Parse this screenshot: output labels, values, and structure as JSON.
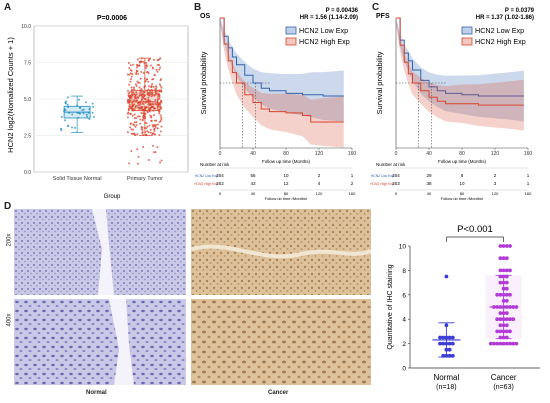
{
  "panel_labels": {
    "a": "A",
    "b": "B",
    "c": "C",
    "d": "D"
  },
  "chart_data": [
    {
      "id": "A",
      "type": "box",
      "title": "P=0.0006",
      "ylabel": "HCN2 log2(Nomalized Counts + 1)",
      "xlabel": "Group",
      "categories": [
        "Solid Tissue Normal",
        "Primary Tumor"
      ],
      "yticks": [
        "0.0",
        "2.5",
        "5.0",
        "7.5",
        "10.0"
      ],
      "ylim": [
        0,
        10
      ],
      "boxes": [
        {
          "name": "Solid Tissue Normal",
          "q1": 3.7,
          "median": 4.1,
          "q3": 4.5,
          "low": 2.7,
          "high": 5.2,
          "n_points": 40,
          "color": "#1f8fc4"
        },
        {
          "name": "Primary Tumor",
          "q1": 4.2,
          "median": 4.8,
          "q3": 5.6,
          "low": 2.5,
          "high": 7.8,
          "n_points": 450,
          "color": "#d9462f"
        }
      ]
    },
    {
      "id": "B",
      "type": "line",
      "title": "OS",
      "stats": [
        "P = 0.00436",
        "HR = 1.56 (1.14-2.09)"
      ],
      "ylabel": "Survival probability",
      "xlabel": "Follow up time (Months)",
      "xticks": [
        "0",
        "40",
        "80",
        "120",
        "160"
      ],
      "xlim": [
        0,
        160
      ],
      "ylim": [
        0,
        1
      ],
      "series": [
        {
          "name": "HCN2 Low Exp",
          "color": "#3562b0",
          "x": [
            0,
            5,
            10,
            15,
            20,
            30,
            40,
            50,
            60,
            80,
            100,
            110,
            125,
            150
          ],
          "y": [
            1,
            0.86,
            0.77,
            0.7,
            0.64,
            0.56,
            0.5,
            0.46,
            0.44,
            0.42,
            0.41,
            0.41,
            0.4,
            0.4
          ]
        },
        {
          "name": "HCN2 High Exp",
          "color": "#d9462f",
          "x": [
            0,
            5,
            10,
            15,
            20,
            30,
            40,
            50,
            60,
            80,
            100,
            110,
            125,
            150
          ],
          "y": [
            1,
            0.8,
            0.67,
            0.58,
            0.5,
            0.41,
            0.35,
            0.3,
            0.28,
            0.27,
            0.25,
            0.2,
            0.2,
            0.2
          ]
        }
      ],
      "risk_table": {
        "title": "Number at risk",
        "rows": [
          {
            "label": "HCN2 Low Exp",
            "values": [
              "204",
              "56",
              "10",
              "2",
              "1"
            ]
          },
          {
            "label": "HCN2 High Exp",
            "values": [
              "202",
              "43",
              "12",
              "4",
              "2"
            ]
          }
        ],
        "xticks": [
          "0",
          "40",
          "80",
          "120",
          "160"
        ],
        "xlabel": "Follow up time (Months)"
      }
    },
    {
      "id": "C",
      "type": "line",
      "title": "PFS",
      "stats": [
        "P = 0.0379",
        "HR = 1.37 (1.02-1.86)"
      ],
      "ylabel": "Survival probability",
      "xlabel": "Follow up time (Months)",
      "xticks": [
        "0",
        "40",
        "80",
        "120",
        "160"
      ],
      "xlim": [
        0,
        160
      ],
      "ylim": [
        0,
        1
      ],
      "series": [
        {
          "name": "HCN2 Low Exp",
          "color": "#3562b0",
          "x": [
            0,
            5,
            10,
            15,
            20,
            30,
            40,
            50,
            60,
            80,
            100,
            120,
            140,
            155
          ],
          "y": [
            1,
            0.83,
            0.73,
            0.67,
            0.6,
            0.52,
            0.47,
            0.44,
            0.42,
            0.41,
            0.4,
            0.4,
            0.4,
            0.4
          ]
        },
        {
          "name": "HCN2 High Exp",
          "color": "#d9462f",
          "x": [
            0,
            5,
            10,
            15,
            20,
            30,
            40,
            50,
            60,
            80,
            100,
            120,
            140,
            155
          ],
          "y": [
            1,
            0.79,
            0.66,
            0.57,
            0.5,
            0.44,
            0.39,
            0.36,
            0.34,
            0.34,
            0.33,
            0.33,
            0.33,
            0.33
          ]
        }
      ],
      "risk_table": {
        "title": "Number at risk",
        "rows": [
          {
            "label": "HCN2 Low Exp",
            "values": [
              "204",
              "29",
              "8",
              "2",
              "1"
            ]
          },
          {
            "label": "HCN2 High Exp",
            "values": [
              "203",
              "38",
              "10",
              "3",
              "1"
            ]
          }
        ],
        "xticks": [
          "0",
          "40",
          "80",
          "120",
          "160"
        ],
        "xlabel": "Follow up time (Months)"
      }
    },
    {
      "id": "D",
      "type": "scatter",
      "title": "P<0.001",
      "ylabel": "Quantitative of IHC staining",
      "categories": [
        "Normal",
        "Cancer"
      ],
      "category_notes": [
        "(n=18)",
        "(n=63)"
      ],
      "yticks": [
        "0",
        "2",
        "4",
        "6",
        "8",
        "10"
      ],
      "ylim": [
        0,
        10
      ],
      "groups": [
        {
          "name": "Normal",
          "color": "#3b3bd6",
          "mean": 2.3,
          "sd": 1.4,
          "values": [
            7.5,
            3.5,
            2.5,
            2.5,
            2.5,
            2.5,
            2.5,
            2,
            2,
            2,
            2,
            2,
            1.5,
            1.5,
            1,
            1,
            1,
            1
          ]
        },
        {
          "name": "Cancer",
          "color": "#b23ad6",
          "mean": 5,
          "sd": 2.6,
          "values": [
            10,
            10,
            10,
            10,
            9,
            9,
            9,
            8,
            8,
            8,
            8,
            7.5,
            7.5,
            7.5,
            7,
            7,
            7,
            6.5,
            6.5,
            6,
            6,
            6,
            6,
            6,
            5.5,
            5.5,
            5,
            5,
            5,
            5,
            5,
            5,
            5,
            5,
            4.5,
            4.5,
            4.5,
            4,
            4,
            4,
            4,
            4,
            4,
            3.5,
            3.5,
            3.5,
            3,
            3,
            3,
            3,
            3,
            2.5,
            2.5,
            2.5,
            2,
            2,
            2,
            2,
            2,
            2,
            2,
            2,
            2
          ]
        }
      ]
    }
  ],
  "ihc": {
    "row_labels": [
      "200x",
      "400x"
    ],
    "col_labels": [
      "Normal",
      "Cancer"
    ]
  }
}
